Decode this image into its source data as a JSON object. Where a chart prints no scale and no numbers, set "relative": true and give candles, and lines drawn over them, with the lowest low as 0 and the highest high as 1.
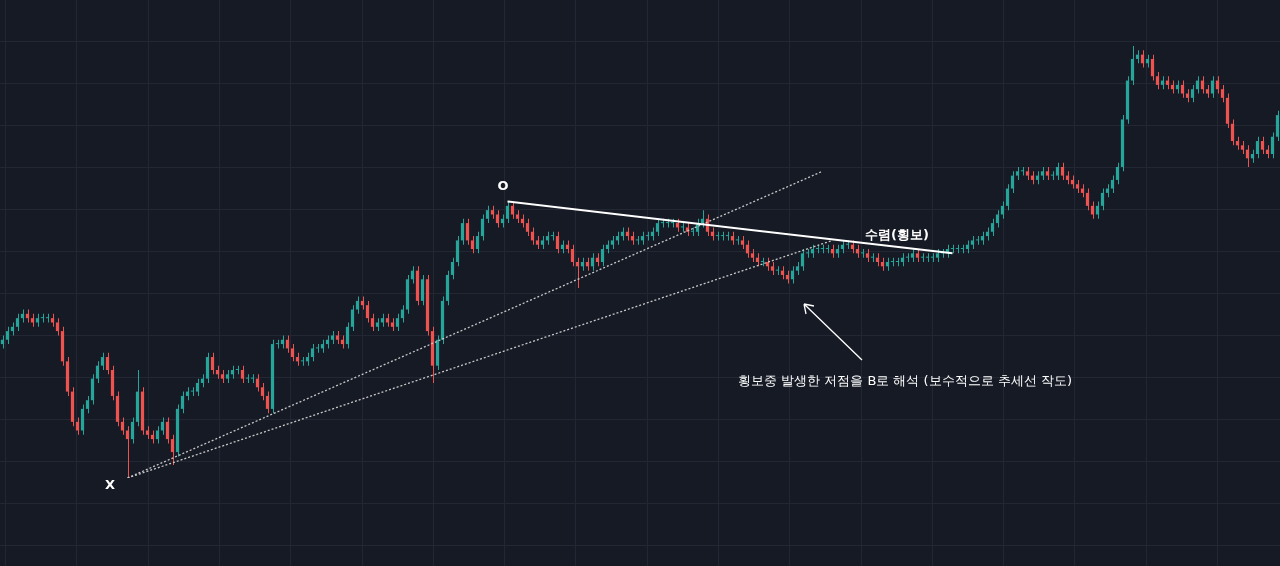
{
  "chart_data": {
    "type": "candlestick",
    "relative": true,
    "grid": true,
    "legend": false,
    "categories": [
      null,
      null,
      null,
      null,
      null,
      null,
      null,
      null,
      null,
      null,
      null,
      null,
      null,
      null,
      null,
      null,
      null,
      null,
      null,
      null,
      null,
      null,
      null,
      null,
      null,
      null,
      null,
      null,
      null,
      null,
      null,
      null,
      null,
      null,
      null,
      null,
      null,
      null,
      null,
      null,
      null,
      null,
      null,
      null,
      null,
      null,
      null,
      null,
      null,
      null,
      null,
      null,
      null,
      null,
      null,
      null,
      null,
      null,
      null,
      null,
      null,
      null,
      null,
      null,
      null,
      null,
      null,
      null,
      null,
      null,
      null,
      null,
      null,
      null,
      null,
      null,
      null,
      null,
      null,
      null,
      null,
      null,
      null,
      null,
      null,
      null,
      null,
      null,
      null,
      null,
      null,
      null,
      null,
      null,
      null,
      null,
      null,
      null,
      null,
      null,
      null,
      null,
      null,
      null,
      null,
      null,
      null,
      null,
      null,
      null,
      null,
      null,
      null,
      null,
      null,
      null,
      null,
      null,
      null,
      null,
      null,
      null,
      null,
      null,
      null,
      null,
      null,
      null,
      null,
      null,
      null,
      null,
      null,
      null,
      null,
      null,
      null,
      null,
      null,
      null,
      null,
      null,
      null,
      null,
      null,
      null,
      null,
      null,
      null,
      null,
      null,
      null,
      null,
      null,
      null,
      null,
      null,
      null,
      null,
      null,
      null,
      null,
      null,
      null,
      null,
      null,
      null,
      null,
      null,
      null,
      null,
      null,
      null,
      null,
      null,
      null,
      null,
      null,
      null,
      null,
      null,
      null,
      null,
      null,
      null,
      null,
      null,
      null,
      null,
      null,
      null,
      null,
      null,
      null,
      null,
      null,
      null,
      null,
      null,
      null,
      null,
      null,
      null,
      null,
      null,
      null,
      null,
      null,
      null,
      null,
      null,
      null,
      null,
      null,
      null,
      null,
      null,
      null,
      null,
      null,
      null,
      null,
      null,
      null,
      null,
      null,
      null,
      null,
      null,
      null,
      null,
      null,
      null,
      null,
      null,
      null,
      null,
      null,
      null,
      null,
      null,
      null,
      null,
      null,
      null,
      null,
      null,
      null,
      null,
      null,
      null,
      null,
      null,
      null,
      null,
      null
    ],
    "ohlc": [
      [
        0.31,
        0.33,
        0.3,
        0.32
      ],
      [
        0.32,
        0.35,
        0.31,
        0.34
      ],
      [
        0.34,
        0.36,
        0.33,
        0.35
      ],
      [
        0.35,
        0.38,
        0.34,
        0.37
      ],
      [
        0.37,
        0.39,
        0.36,
        0.38
      ],
      [
        0.38,
        0.39,
        0.36,
        0.37
      ],
      [
        0.37,
        0.38,
        0.35,
        0.36
      ],
      [
        0.36,
        0.38,
        0.35,
        0.37
      ],
      [
        0.37,
        0.38,
        0.36,
        0.37
      ],
      [
        0.37,
        0.38,
        0.36,
        0.37
      ],
      [
        0.37,
        0.38,
        0.35,
        0.36
      ],
      [
        0.36,
        0.37,
        0.33,
        0.34
      ],
      [
        0.34,
        0.35,
        0.26,
        0.27
      ],
      [
        0.27,
        0.28,
        0.19,
        0.2
      ],
      [
        0.2,
        0.21,
        0.12,
        0.13
      ],
      [
        0.13,
        0.14,
        0.1,
        0.11
      ],
      [
        0.11,
        0.17,
        0.1,
        0.16
      ],
      [
        0.16,
        0.19,
        0.15,
        0.18
      ],
      [
        0.18,
        0.24,
        0.17,
        0.23
      ],
      [
        0.23,
        0.27,
        0.22,
        0.26
      ],
      [
        0.26,
        0.29,
        0.25,
        0.28
      ],
      [
        0.28,
        0.29,
        0.24,
        0.25
      ],
      [
        0.25,
        0.26,
        0.18,
        0.19
      ],
      [
        0.19,
        0.2,
        0.12,
        0.13
      ],
      [
        0.13,
        0.14,
        0.1,
        0.11
      ],
      [
        0.11,
        0.12,
        0.0,
        0.09
      ],
      [
        0.09,
        0.14,
        0.08,
        0.13
      ],
      [
        0.13,
        0.25,
        0.12,
        0.2
      ],
      [
        0.2,
        0.21,
        0.1,
        0.11
      ],
      [
        0.11,
        0.12,
        0.09,
        0.1
      ],
      [
        0.1,
        0.11,
        0.08,
        0.09
      ],
      [
        0.09,
        0.12,
        0.08,
        0.11
      ],
      [
        0.11,
        0.14,
        0.1,
        0.13
      ],
      [
        0.13,
        0.14,
        0.08,
        0.09
      ],
      [
        0.09,
        0.1,
        0.03,
        0.06
      ],
      [
        0.06,
        0.17,
        0.05,
        0.16
      ],
      [
        0.16,
        0.2,
        0.15,
        0.19
      ],
      [
        0.19,
        0.21,
        0.18,
        0.2
      ],
      [
        0.2,
        0.21,
        0.19,
        0.2
      ],
      [
        0.2,
        0.23,
        0.19,
        0.22
      ],
      [
        0.22,
        0.24,
        0.21,
        0.23
      ],
      [
        0.23,
        0.29,
        0.22,
        0.28
      ],
      [
        0.28,
        0.29,
        0.24,
        0.25
      ],
      [
        0.25,
        0.26,
        0.23,
        0.24
      ],
      [
        0.24,
        0.25,
        0.22,
        0.23
      ],
      [
        0.23,
        0.25,
        0.22,
        0.24
      ],
      [
        0.24,
        0.26,
        0.23,
        0.25
      ],
      [
        0.25,
        0.26,
        0.24,
        0.25
      ],
      [
        0.25,
        0.26,
        0.22,
        0.23
      ],
      [
        0.23,
        0.24,
        0.22,
        0.23
      ],
      [
        0.23,
        0.24,
        0.22,
        0.23
      ],
      [
        0.23,
        0.24,
        0.2,
        0.21
      ],
      [
        0.21,
        0.22,
        0.18,
        0.19
      ],
      [
        0.19,
        0.2,
        0.15,
        0.16
      ],
      [
        0.16,
        0.32,
        0.15,
        0.31
      ],
      [
        0.31,
        0.32,
        0.3,
        0.31
      ],
      [
        0.31,
        0.33,
        0.3,
        0.32
      ],
      [
        0.32,
        0.33,
        0.29,
        0.3
      ],
      [
        0.3,
        0.31,
        0.27,
        0.28
      ],
      [
        0.28,
        0.29,
        0.26,
        0.27
      ],
      [
        0.27,
        0.28,
        0.26,
        0.27
      ],
      [
        0.27,
        0.29,
        0.26,
        0.28
      ],
      [
        0.28,
        0.31,
        0.27,
        0.3
      ],
      [
        0.3,
        0.31,
        0.29,
        0.3
      ],
      [
        0.3,
        0.32,
        0.29,
        0.31
      ],
      [
        0.31,
        0.33,
        0.3,
        0.32
      ],
      [
        0.32,
        0.34,
        0.31,
        0.33
      ],
      [
        0.33,
        0.34,
        0.31,
        0.32
      ],
      [
        0.32,
        0.33,
        0.3,
        0.31
      ],
      [
        0.31,
        0.36,
        0.3,
        0.35
      ],
      [
        0.35,
        0.4,
        0.34,
        0.39
      ],
      [
        0.39,
        0.42,
        0.38,
        0.41
      ],
      [
        0.41,
        0.42,
        0.39,
        0.4
      ],
      [
        0.4,
        0.41,
        0.36,
        0.37
      ],
      [
        0.37,
        0.38,
        0.34,
        0.35
      ],
      [
        0.35,
        0.37,
        0.34,
        0.36
      ],
      [
        0.36,
        0.38,
        0.35,
        0.37
      ],
      [
        0.37,
        0.38,
        0.35,
        0.36
      ],
      [
        0.36,
        0.37,
        0.34,
        0.35
      ],
      [
        0.35,
        0.38,
        0.34,
        0.37
      ],
      [
        0.37,
        0.4,
        0.36,
        0.39
      ],
      [
        0.39,
        0.47,
        0.38,
        0.46
      ],
      [
        0.46,
        0.49,
        0.45,
        0.48
      ],
      [
        0.48,
        0.49,
        0.4,
        0.41
      ],
      [
        0.41,
        0.47,
        0.4,
        0.46
      ],
      [
        0.46,
        0.47,
        0.33,
        0.34
      ],
      [
        0.34,
        0.35,
        0.22,
        0.26
      ],
      [
        0.26,
        0.33,
        0.25,
        0.32
      ],
      [
        0.32,
        0.42,
        0.31,
        0.41
      ],
      [
        0.41,
        0.48,
        0.4,
        0.47
      ],
      [
        0.47,
        0.51,
        0.46,
        0.5
      ],
      [
        0.5,
        0.56,
        0.49,
        0.55
      ],
      [
        0.55,
        0.6,
        0.54,
        0.59
      ],
      [
        0.59,
        0.6,
        0.54,
        0.55
      ],
      [
        0.55,
        0.56,
        0.52,
        0.53
      ],
      [
        0.53,
        0.57,
        0.52,
        0.56
      ],
      [
        0.56,
        0.61,
        0.55,
        0.6
      ],
      [
        0.6,
        0.63,
        0.59,
        0.62
      ],
      [
        0.62,
        0.63,
        0.6,
        0.61
      ],
      [
        0.61,
        0.62,
        0.58,
        0.59
      ],
      [
        0.59,
        0.61,
        0.58,
        0.6
      ],
      [
        0.6,
        0.64,
        0.59,
        0.63
      ],
      [
        0.63,
        0.64,
        0.6,
        0.61
      ],
      [
        0.61,
        0.62,
        0.59,
        0.6
      ],
      [
        0.6,
        0.61,
        0.58,
        0.59
      ],
      [
        0.59,
        0.6,
        0.56,
        0.57
      ],
      [
        0.57,
        0.58,
        0.54,
        0.55
      ],
      [
        0.55,
        0.56,
        0.53,
        0.54
      ],
      [
        0.54,
        0.56,
        0.53,
        0.55
      ],
      [
        0.55,
        0.57,
        0.54,
        0.56
      ],
      [
        0.56,
        0.57,
        0.55,
        0.56
      ],
      [
        0.56,
        0.57,
        0.52,
        0.53
      ],
      [
        0.53,
        0.55,
        0.52,
        0.54
      ],
      [
        0.54,
        0.55,
        0.52,
        0.53
      ],
      [
        0.53,
        0.54,
        0.49,
        0.5
      ],
      [
        0.5,
        0.51,
        0.44,
        0.49
      ],
      [
        0.49,
        0.51,
        0.48,
        0.5
      ],
      [
        0.5,
        0.51,
        0.48,
        0.49
      ],
      [
        0.49,
        0.52,
        0.48,
        0.51
      ],
      [
        0.51,
        0.52,
        0.49,
        0.5
      ],
      [
        0.5,
        0.54,
        0.49,
        0.53
      ],
      [
        0.53,
        0.55,
        0.52,
        0.54
      ],
      [
        0.54,
        0.56,
        0.53,
        0.55
      ],
      [
        0.55,
        0.57,
        0.54,
        0.56
      ],
      [
        0.56,
        0.58,
        0.55,
        0.57
      ],
      [
        0.57,
        0.58,
        0.55,
        0.56
      ],
      [
        0.56,
        0.57,
        0.54,
        0.55
      ],
      [
        0.55,
        0.56,
        0.54,
        0.55
      ],
      [
        0.55,
        0.57,
        0.54,
        0.56
      ],
      [
        0.56,
        0.57,
        0.55,
        0.56
      ],
      [
        0.56,
        0.58,
        0.55,
        0.57
      ],
      [
        0.57,
        0.6,
        0.56,
        0.59
      ],
      [
        0.59,
        0.6,
        0.58,
        0.59
      ],
      [
        0.59,
        0.6,
        0.58,
        0.59
      ],
      [
        0.59,
        0.6,
        0.58,
        0.59
      ],
      [
        0.59,
        0.6,
        0.57,
        0.58
      ],
      [
        0.58,
        0.59,
        0.57,
        0.58
      ],
      [
        0.58,
        0.59,
        0.56,
        0.57
      ],
      [
        0.57,
        0.58,
        0.56,
        0.57
      ],
      [
        0.57,
        0.6,
        0.56,
        0.59
      ],
      [
        0.59,
        0.62,
        0.58,
        0.6
      ],
      [
        0.6,
        0.61,
        0.56,
        0.57
      ],
      [
        0.57,
        0.58,
        0.55,
        0.56
      ],
      [
        0.56,
        0.57,
        0.55,
        0.56
      ],
      [
        0.56,
        0.57,
        0.55,
        0.56
      ],
      [
        0.56,
        0.57,
        0.55,
        0.56
      ],
      [
        0.56,
        0.57,
        0.54,
        0.55
      ],
      [
        0.55,
        0.56,
        0.54,
        0.55
      ],
      [
        0.55,
        0.56,
        0.53,
        0.54
      ],
      [
        0.54,
        0.55,
        0.51,
        0.52
      ],
      [
        0.52,
        0.53,
        0.5,
        0.51
      ],
      [
        0.51,
        0.52,
        0.49,
        0.5
      ],
      [
        0.5,
        0.51,
        0.49,
        0.5
      ],
      [
        0.5,
        0.51,
        0.48,
        0.49
      ],
      [
        0.49,
        0.5,
        0.47,
        0.48
      ],
      [
        0.48,
        0.49,
        0.47,
        0.48
      ],
      [
        0.48,
        0.49,
        0.46,
        0.47
      ],
      [
        0.47,
        0.48,
        0.45,
        0.46
      ],
      [
        0.46,
        0.49,
        0.45,
        0.48
      ],
      [
        0.48,
        0.5,
        0.47,
        0.49
      ],
      [
        0.49,
        0.53,
        0.48,
        0.52
      ],
      [
        0.52,
        0.53,
        0.51,
        0.52
      ],
      [
        0.52,
        0.54,
        0.51,
        0.53
      ],
      [
        0.53,
        0.54,
        0.52,
        0.53
      ],
      [
        0.53,
        0.54,
        0.52,
        0.53
      ],
      [
        0.53,
        0.54,
        0.52,
        0.53
      ],
      [
        0.53,
        0.54,
        0.51,
        0.52
      ],
      [
        0.52,
        0.54,
        0.51,
        0.53
      ],
      [
        0.53,
        0.55,
        0.52,
        0.54
      ],
      [
        0.54,
        0.55,
        0.53,
        0.54
      ],
      [
        0.54,
        0.55,
        0.52,
        0.53
      ],
      [
        0.53,
        0.54,
        0.51,
        0.52
      ],
      [
        0.52,
        0.53,
        0.51,
        0.52
      ],
      [
        0.52,
        0.53,
        0.5,
        0.51
      ],
      [
        0.51,
        0.52,
        0.5,
        0.51
      ],
      [
        0.51,
        0.52,
        0.49,
        0.5
      ],
      [
        0.5,
        0.51,
        0.48,
        0.49
      ],
      [
        0.49,
        0.51,
        0.48,
        0.5
      ],
      [
        0.5,
        0.51,
        0.49,
        0.5
      ],
      [
        0.5,
        0.51,
        0.49,
        0.5
      ],
      [
        0.5,
        0.52,
        0.49,
        0.51
      ],
      [
        0.51,
        0.52,
        0.5,
        0.51
      ],
      [
        0.51,
        0.53,
        0.5,
        0.52
      ],
      [
        0.52,
        0.53,
        0.5,
        0.51
      ],
      [
        0.51,
        0.52,
        0.5,
        0.51
      ],
      [
        0.51,
        0.52,
        0.5,
        0.51
      ],
      [
        0.51,
        0.52,
        0.5,
        0.51
      ],
      [
        0.51,
        0.53,
        0.5,
        0.52
      ],
      [
        0.52,
        0.53,
        0.51,
        0.52
      ],
      [
        0.52,
        0.54,
        0.51,
        0.53
      ],
      [
        0.53,
        0.54,
        0.52,
        0.53
      ],
      [
        0.53,
        0.54,
        0.52,
        0.53
      ],
      [
        0.53,
        0.54,
        0.52,
        0.53
      ],
      [
        0.53,
        0.55,
        0.52,
        0.54
      ],
      [
        0.54,
        0.56,
        0.53,
        0.55
      ],
      [
        0.55,
        0.56,
        0.54,
        0.55
      ],
      [
        0.55,
        0.57,
        0.54,
        0.56
      ],
      [
        0.56,
        0.58,
        0.55,
        0.57
      ],
      [
        0.57,
        0.6,
        0.56,
        0.59
      ],
      [
        0.59,
        0.62,
        0.58,
        0.61
      ],
      [
        0.61,
        0.64,
        0.6,
        0.63
      ],
      [
        0.63,
        0.68,
        0.62,
        0.67
      ],
      [
        0.67,
        0.71,
        0.66,
        0.7
      ],
      [
        0.7,
        0.72,
        0.69,
        0.71
      ],
      [
        0.71,
        0.72,
        0.7,
        0.71
      ],
      [
        0.71,
        0.72,
        0.69,
        0.7
      ],
      [
        0.7,
        0.71,
        0.68,
        0.69
      ],
      [
        0.69,
        0.71,
        0.68,
        0.7
      ],
      [
        0.7,
        0.72,
        0.69,
        0.71
      ],
      [
        0.71,
        0.72,
        0.69,
        0.7
      ],
      [
        0.7,
        0.71,
        0.69,
        0.7
      ],
      [
        0.7,
        0.73,
        0.69,
        0.72
      ],
      [
        0.72,
        0.73,
        0.69,
        0.7
      ],
      [
        0.7,
        0.71,
        0.68,
        0.69
      ],
      [
        0.69,
        0.7,
        0.67,
        0.68
      ],
      [
        0.68,
        0.69,
        0.66,
        0.67
      ],
      [
        0.67,
        0.68,
        0.65,
        0.66
      ],
      [
        0.66,
        0.67,
        0.62,
        0.63
      ],
      [
        0.63,
        0.64,
        0.6,
        0.61
      ],
      [
        0.61,
        0.64,
        0.6,
        0.63
      ],
      [
        0.63,
        0.67,
        0.62,
        0.66
      ],
      [
        0.66,
        0.68,
        0.65,
        0.67
      ],
      [
        0.67,
        0.7,
        0.66,
        0.69
      ],
      [
        0.69,
        0.73,
        0.68,
        0.72
      ],
      [
        0.72,
        0.84,
        0.71,
        0.83
      ],
      [
        0.83,
        0.93,
        0.82,
        0.92
      ],
      [
        0.92,
        1.0,
        0.91,
        0.97
      ],
      [
        0.97,
        0.99,
        0.96,
        0.98
      ],
      [
        0.98,
        0.99,
        0.95,
        0.96
      ],
      [
        0.96,
        0.98,
        0.95,
        0.97
      ],
      [
        0.97,
        0.98,
        0.92,
        0.93
      ],
      [
        0.93,
        0.94,
        0.9,
        0.91
      ],
      [
        0.91,
        0.93,
        0.9,
        0.92
      ],
      [
        0.92,
        0.93,
        0.9,
        0.91
      ],
      [
        0.91,
        0.92,
        0.89,
        0.9
      ],
      [
        0.9,
        0.92,
        0.89,
        0.91
      ],
      [
        0.91,
        0.92,
        0.88,
        0.89
      ],
      [
        0.89,
        0.9,
        0.87,
        0.88
      ],
      [
        0.88,
        0.91,
        0.87,
        0.9
      ],
      [
        0.9,
        0.93,
        0.89,
        0.92
      ],
      [
        0.92,
        0.93,
        0.89,
        0.9
      ],
      [
        0.9,
        0.91,
        0.88,
        0.89
      ],
      [
        0.89,
        0.93,
        0.88,
        0.92
      ],
      [
        0.92,
        0.93,
        0.89,
        0.9
      ],
      [
        0.9,
        0.91,
        0.87,
        0.88
      ],
      [
        0.88,
        0.89,
        0.81,
        0.82
      ],
      [
        0.82,
        0.83,
        0.77,
        0.78
      ],
      [
        0.78,
        0.79,
        0.76,
        0.77
      ],
      [
        0.77,
        0.78,
        0.75,
        0.76
      ],
      [
        0.76,
        0.77,
        0.72,
        0.74
      ],
      [
        0.74,
        0.76,
        0.73,
        0.75
      ],
      [
        0.75,
        0.79,
        0.74,
        0.78
      ],
      [
        0.78,
        0.79,
        0.75,
        0.76
      ],
      [
        0.76,
        0.77,
        0.74,
        0.75
      ],
      [
        0.75,
        0.8,
        0.74,
        0.79
      ],
      [
        0.79,
        0.85,
        0.78,
        0.84
      ]
    ],
    "series": [
      {
        "type": "line",
        "color": "#ffffff",
        "line_style": "solid",
        "values": [
          null,
          null,
          null,
          null,
          null,
          null,
          null,
          null,
          null,
          null,
          null,
          null,
          null,
          null,
          null,
          null,
          null,
          null,
          null,
          null,
          null,
          null,
          null,
          null,
          null,
          null,
          null,
          null,
          null,
          null,
          null,
          null,
          null,
          null,
          null,
          null,
          null,
          null,
          null,
          null,
          null,
          null,
          null,
          null,
          null,
          null,
          null,
          null,
          null,
          null,
          null,
          null,
          null,
          null,
          null,
          null,
          null,
          null,
          null,
          null,
          null,
          null,
          null,
          null,
          null,
          null,
          null,
          null,
          null,
          null,
          null,
          null,
          null,
          null,
          null,
          null,
          null,
          null,
          null,
          null,
          null,
          null,
          null,
          null,
          null,
          null,
          null,
          null,
          null,
          null,
          null,
          null,
          null,
          null,
          null,
          null,
          null,
          null,
          null,
          null,
          null,
          0.64,
          null,
          null,
          null,
          null,
          null,
          null,
          null,
          null,
          null,
          null,
          null,
          null,
          null,
          null,
          null,
          null,
          null,
          null,
          null,
          null,
          null,
          null,
          null,
          null,
          null,
          null,
          null,
          null,
          null,
          null,
          null,
          null,
          null,
          null,
          null,
          null,
          null,
          null,
          null,
          null,
          null,
          null,
          null,
          null,
          null,
          null,
          null,
          null,
          null,
          null,
          null,
          null,
          null,
          null,
          null,
          null,
          null,
          null,
          null,
          null,
          null,
          null,
          null,
          null,
          null,
          null,
          null,
          null,
          null,
          null,
          null,
          null,
          null,
          null,
          null,
          null,
          null,
          null,
          null,
          null,
          null,
          null,
          null,
          null,
          null,
          null,
          null,
          null,
          0.52,
          null,
          null,
          null,
          null,
          null,
          null,
          null,
          null,
          null,
          null,
          null,
          null,
          null,
          null,
          null,
          null,
          null,
          null,
          null,
          null,
          null,
          null,
          null,
          null,
          null,
          null,
          null,
          null,
          null,
          null,
          null,
          null,
          null,
          null,
          null,
          null,
          null,
          null,
          null,
          null,
          null,
          null,
          null,
          null,
          null,
          null,
          null,
          null,
          null,
          null,
          null,
          null,
          null,
          null,
          null,
          null,
          null,
          null,
          null,
          null,
          null,
          null,
          null,
          null,
          null
        ]
      },
      {
        "type": "line",
        "color": "#c8c8c8",
        "line_style": "dotted",
        "values": [
          null,
          null,
          null,
          null,
          null,
          null,
          null,
          null,
          null,
          null,
          null,
          null,
          null,
          null,
          null,
          null,
          null,
          null,
          null,
          null,
          null,
          null,
          null,
          null,
          null,
          0.0,
          null,
          null,
          null,
          null,
          null,
          null,
          null,
          null,
          null,
          null,
          null,
          null,
          null,
          null,
          null,
          null,
          null,
          null,
          null,
          null,
          null,
          null,
          null,
          null,
          null,
          null,
          null,
          null,
          null,
          null,
          null,
          null,
          null,
          null,
          null,
          null,
          null,
          null,
          null,
          null,
          null,
          null,
          null,
          null,
          null,
          null,
          null,
          null,
          null,
          null,
          null,
          null,
          null,
          null,
          null,
          null,
          null,
          null,
          null,
          null,
          null,
          null,
          null,
          null,
          null,
          null,
          null,
          null,
          null,
          null,
          null,
          null,
          null,
          null,
          null,
          null,
          null,
          null,
          null,
          null,
          null,
          null,
          null,
          null,
          null,
          null,
          null,
          null,
          null,
          null,
          null,
          null,
          null,
          null,
          null,
          null,
          null,
          null,
          null,
          null,
          null,
          null,
          null,
          null,
          null,
          null,
          null,
          null,
          null,
          null,
          null,
          null,
          null,
          null,
          null,
          null,
          null,
          null,
          null,
          null,
          null,
          null,
          null,
          null,
          null,
          null,
          null,
          null,
          null,
          null,
          null,
          null,
          null,
          null,
          null,
          null,
          null,
          null,
          0.71,
          null,
          null,
          null,
          null,
          null,
          null,
          null,
          null,
          null,
          null,
          null,
          null,
          null,
          null,
          null,
          null,
          null,
          null,
          null,
          null,
          null,
          null,
          null,
          null,
          null,
          null,
          null,
          null,
          null,
          null,
          null,
          null,
          null,
          null,
          null,
          null,
          null,
          null,
          null,
          null,
          null,
          null,
          null,
          null,
          null,
          null,
          null,
          null,
          null,
          null,
          null,
          null,
          null,
          null,
          null,
          null,
          null,
          null,
          null,
          null,
          null,
          null,
          null,
          null,
          null,
          null,
          null,
          null,
          null,
          null,
          null,
          null,
          null,
          null,
          null,
          null,
          null,
          null,
          null,
          null,
          null,
          null,
          null,
          null,
          null,
          null,
          null,
          null,
          null,
          null,
          null
        ]
      },
      {
        "type": "line",
        "color": "#c8c8c8",
        "line_style": "dotted",
        "values": [
          null,
          null,
          null,
          null,
          null,
          null,
          null,
          null,
          null,
          null,
          null,
          null,
          null,
          null,
          null,
          null,
          null,
          null,
          null,
          null,
          null,
          null,
          null,
          null,
          null,
          0.0,
          null,
          null,
          null,
          null,
          null,
          null,
          null,
          null,
          null,
          null,
          null,
          null,
          null,
          null,
          null,
          null,
          null,
          null,
          null,
          null,
          null,
          null,
          null,
          null,
          null,
          null,
          null,
          null,
          null,
          null,
          null,
          null,
          null,
          null,
          null,
          null,
          null,
          null,
          null,
          null,
          null,
          null,
          null,
          null,
          null,
          null,
          null,
          null,
          null,
          null,
          null,
          null,
          null,
          null,
          null,
          null,
          null,
          null,
          null,
          null,
          null,
          null,
          null,
          null,
          null,
          null,
          null,
          null,
          null,
          null,
          null,
          null,
          null,
          null,
          null,
          null,
          null,
          null,
          null,
          null,
          null,
          null,
          null,
          null,
          null,
          null,
          null,
          null,
          null,
          null,
          null,
          null,
          null,
          null,
          null,
          null,
          null,
          null,
          null,
          null,
          null,
          null,
          null,
          null,
          null,
          null,
          null,
          null,
          null,
          null,
          null,
          null,
          null,
          null,
          null,
          null,
          null,
          null,
          null,
          null,
          null,
          null,
          null,
          null,
          null,
          null,
          null,
          null,
          null,
          null,
          null,
          null,
          null,
          null,
          null,
          null,
          null,
          null,
          null,
          null,
          0.55,
          null,
          null,
          null,
          null,
          null,
          null,
          null,
          null,
          null,
          null,
          null,
          null,
          null,
          null,
          null,
          null,
          null,
          null,
          null,
          null,
          null,
          null,
          null,
          null,
          null,
          null,
          null,
          null,
          null,
          null,
          null,
          null,
          null,
          null,
          null,
          null,
          null,
          null,
          null,
          null,
          null,
          null,
          null,
          null,
          null,
          null,
          null,
          null,
          null,
          null,
          null,
          null,
          null,
          null,
          null,
          null,
          null,
          null,
          null,
          null,
          null,
          null,
          null,
          null,
          null,
          null,
          null,
          null,
          null,
          null,
          null,
          null,
          null,
          null,
          null,
          null,
          null,
          null,
          null,
          null,
          null,
          null,
          null,
          null,
          null,
          null,
          null,
          null,
          null
        ]
      }
    ],
    "annotations": [
      "O",
      "X",
      "수렴(횡보)",
      "횡보중 발생한 저점을 B로 해석 (보수적으로 추세선 작도)"
    ]
  }
}
